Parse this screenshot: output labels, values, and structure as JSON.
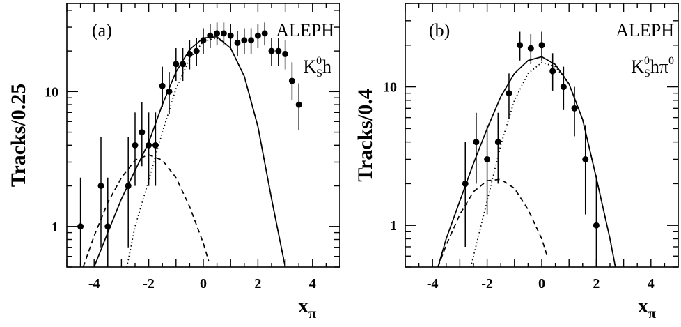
{
  "chart_data": [
    {
      "type": "scatter",
      "panel_label": "(a)",
      "experiment": "ALEPH",
      "channel": {
        "main": "K",
        "sup": "0",
        "sub": "S",
        "rest": "h",
        "rest_sup": ""
      },
      "ylabel": "Tracks/0.25",
      "xlabel": {
        "main": "x",
        "sub": "π"
      },
      "xlim": [
        -5.0,
        5.0
      ],
      "ylim": [
        0.5,
        45
      ],
      "yscale": "log",
      "x_ticks": [
        -4,
        -2,
        0,
        2,
        4
      ],
      "y_ticks": [
        1,
        10
      ],
      "series": [
        {
          "style": "points-with-errors",
          "points": [
            {
              "x": -4.5,
              "y": 1,
              "lo": 0.0,
              "hi": 2.3
            },
            {
              "x": -3.75,
              "y": 2,
              "lo": 0.7,
              "hi": 4.6
            },
            {
              "x": -3.5,
              "y": 1,
              "lo": 0.0,
              "hi": 2.3
            },
            {
              "x": -2.75,
              "y": 2,
              "lo": 0.7,
              "hi": 4.6
            },
            {
              "x": -2.5,
              "y": 4,
              "lo": 2.0,
              "hi": 7.0
            },
            {
              "x": -2.25,
              "y": 5,
              "lo": 2.8,
              "hi": 8.3
            },
            {
              "x": -2.0,
              "y": 4,
              "lo": 2.0,
              "hi": 7.0
            },
            {
              "x": -1.75,
              "y": 4,
              "lo": 2.0,
              "hi": 7.0
            },
            {
              "x": -1.5,
              "y": 11,
              "lo": 7.7,
              "hi": 15.3
            },
            {
              "x": -1.25,
              "y": 10,
              "lo": 6.8,
              "hi": 14.0
            },
            {
              "x": -1.0,
              "y": 16,
              "lo": 12.0,
              "hi": 21.0
            },
            {
              "x": -0.75,
              "y": 16,
              "lo": 12.0,
              "hi": 21.0
            },
            {
              "x": -0.5,
              "y": 19,
              "lo": 14.6,
              "hi": 24.0
            },
            {
              "x": -0.25,
              "y": 20,
              "lo": 15.5,
              "hi": 25.0
            },
            {
              "x": 0.0,
              "y": 24,
              "lo": 19.0,
              "hi": 29.5
            },
            {
              "x": 0.25,
              "y": 26,
              "lo": 21.0,
              "hi": 31.5
            },
            {
              "x": 0.5,
              "y": 27,
              "lo": 22.0,
              "hi": 32.5
            },
            {
              "x": 0.75,
              "y": 27,
              "lo": 22.0,
              "hi": 32.5
            },
            {
              "x": 1.0,
              "y": 26,
              "lo": 21.0,
              "hi": 31.5
            },
            {
              "x": 1.25,
              "y": 23,
              "lo": 18.2,
              "hi": 28.3
            },
            {
              "x": 1.5,
              "y": 24,
              "lo": 19.0,
              "hi": 29.5
            },
            {
              "x": 1.75,
              "y": 24,
              "lo": 19.0,
              "hi": 29.5
            },
            {
              "x": 2.0,
              "y": 26,
              "lo": 21.0,
              "hi": 31.5
            },
            {
              "x": 2.25,
              "y": 27,
              "lo": 22.0,
              "hi": 32.5
            },
            {
              "x": 2.5,
              "y": 20,
              "lo": 15.5,
              "hi": 25.0
            },
            {
              "x": 2.75,
              "y": 20,
              "lo": 15.5,
              "hi": 25.0
            },
            {
              "x": 3.0,
              "y": 19,
              "lo": 14.6,
              "hi": 24.0
            },
            {
              "x": 3.25,
              "y": 12,
              "lo": 8.6,
              "hi": 16.5
            },
            {
              "x": 3.5,
              "y": 8,
              "lo": 5.2,
              "hi": 11.5
            }
          ]
        },
        {
          "style": "solid",
          "name": "",
          "x": [
            -4.0,
            -3.5,
            -3.0,
            -2.5,
            -2.0,
            -1.5,
            -1.0,
            -0.5,
            0.0,
            0.5,
            1.0,
            1.5,
            2.0,
            2.5,
            3.0
          ],
          "y": [
            0.5,
            0.9,
            1.6,
            2.6,
            4.2,
            8.0,
            14.0,
            20.5,
            25.0,
            25.5,
            21.0,
            13.0,
            5.5,
            1.6,
            0.5
          ]
        },
        {
          "style": "dotted",
          "name": "",
          "x": [
            -2.8,
            -2.5,
            -2.0,
            -1.5,
            -1.0,
            -0.5,
            0.0,
            0.5,
            1.0,
            1.5,
            2.0,
            2.5,
            3.0
          ],
          "y": [
            0.5,
            1.0,
            2.2,
            5.0,
            10.5,
            17.5,
            23.5,
            25.0,
            21.0,
            13.0,
            5.5,
            1.6,
            0.5
          ]
        },
        {
          "style": "dashed",
          "name": "",
          "x": [
            -4.4,
            -4.0,
            -3.5,
            -3.0,
            -2.5,
            -2.0,
            -1.5,
            -1.0,
            -0.5,
            0.0,
            0.2
          ],
          "y": [
            0.5,
            0.85,
            1.5,
            2.3,
            3.1,
            3.4,
            3.1,
            2.3,
            1.4,
            0.75,
            0.55
          ]
        }
      ]
    },
    {
      "type": "scatter",
      "panel_label": "(b)",
      "experiment": "ALEPH",
      "channel": {
        "main": "K",
        "sup": "0",
        "sub": "S",
        "rest": "hπ",
        "rest_sup": "0"
      },
      "ylabel": "Tracks/0.4",
      "xlabel": {
        "main": "x",
        "sub": "π"
      },
      "xlim": [
        -5.0,
        5.0
      ],
      "ylim": [
        0.5,
        40
      ],
      "yscale": "log",
      "x_ticks": [
        -4,
        -2,
        0,
        2,
        4
      ],
      "y_ticks": [
        1,
        10
      ],
      "series": [
        {
          "style": "points-with-errors",
          "points": [
            {
              "x": -2.8,
              "y": 2,
              "lo": 0.7,
              "hi": 4.0
            },
            {
              "x": -2.4,
              "y": 4,
              "lo": 2.0,
              "hi": 6.5
            },
            {
              "x": -2.0,
              "y": 3,
              "lo": 1.2,
              "hi": 5.3
            },
            {
              "x": -1.6,
              "y": 4,
              "lo": 2.0,
              "hi": 6.5
            },
            {
              "x": -1.2,
              "y": 9,
              "lo": 6.0,
              "hi": 12.5
            },
            {
              "x": -0.8,
              "y": 20,
              "lo": 15.5,
              "hi": 25.0
            },
            {
              "x": -0.4,
              "y": 19,
              "lo": 14.6,
              "hi": 24.0
            },
            {
              "x": 0.0,
              "y": 20,
              "lo": 15.5,
              "hi": 25.0
            },
            {
              "x": 0.4,
              "y": 13,
              "lo": 9.4,
              "hi": 17.5
            },
            {
              "x": 0.8,
              "y": 10,
              "lo": 6.8,
              "hi": 14.0
            },
            {
              "x": 1.2,
              "y": 7,
              "lo": 4.4,
              "hi": 10.0
            },
            {
              "x": 1.6,
              "y": 3,
              "lo": 1.2,
              "hi": 5.3
            },
            {
              "x": 2.0,
              "y": 1,
              "lo": 0.0,
              "hi": 2.3
            }
          ]
        },
        {
          "style": "solid",
          "name": "",
          "x": [
            -3.8,
            -3.5,
            -3.0,
            -2.5,
            -2.0,
            -1.5,
            -1.0,
            -0.5,
            0.0,
            0.5,
            1.0,
            1.5,
            2.0,
            2.5,
            2.7
          ],
          "y": [
            0.5,
            0.8,
            1.5,
            2.8,
            5.0,
            8.5,
            12.5,
            15.5,
            16.5,
            14.5,
            10.5,
            5.8,
            2.2,
            0.8,
            0.5
          ]
        },
        {
          "style": "dotted",
          "name": "",
          "x": [
            -2.6,
            -2.5,
            -2.0,
            -1.5,
            -1.0,
            -0.5,
            0.0,
            0.5,
            1.0,
            1.5,
            2.0,
            2.5,
            2.7
          ],
          "y": [
            0.5,
            0.6,
            1.5,
            3.8,
            8.0,
            12.5,
            15.0,
            14.0,
            10.5,
            5.8,
            2.2,
            0.8,
            0.5
          ]
        },
        {
          "style": "dashed",
          "name": "",
          "x": [
            -3.8,
            -3.5,
            -3.0,
            -2.5,
            -2.0,
            -1.5,
            -1.0,
            -0.5,
            0.0,
            0.2
          ],
          "y": [
            0.5,
            0.72,
            1.2,
            1.75,
            2.1,
            2.15,
            1.85,
            1.3,
            0.8,
            0.6
          ]
        }
      ]
    }
  ]
}
